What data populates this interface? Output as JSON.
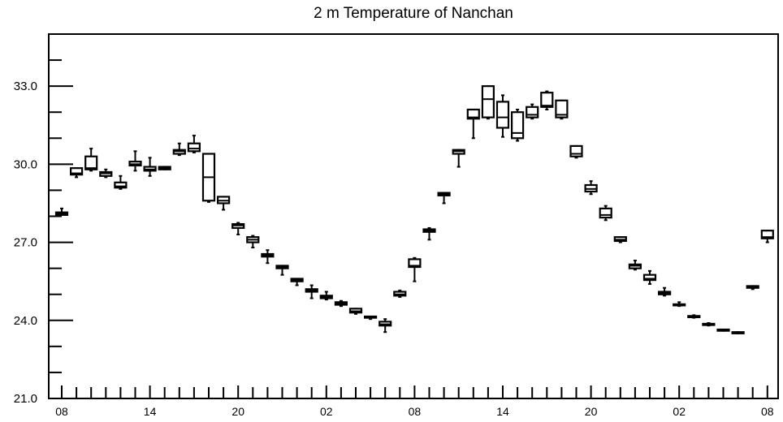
{
  "chart_data": {
    "type": "box",
    "title": "2 m Temperature of Nanchan",
    "xlabel": "",
    "ylabel": "",
    "ylim": [
      21.0,
      35.0
    ],
    "yticks": [
      "21.0",
      "24.0",
      "27.0",
      "30.0",
      "33.0"
    ],
    "x_major_ticks": [
      {
        "index": 0,
        "label": "08"
      },
      {
        "index": 6,
        "label": "14"
      },
      {
        "index": 12,
        "label": "20"
      },
      {
        "index": 18,
        "label": "02"
      },
      {
        "index": 24,
        "label": "08"
      },
      {
        "index": 30,
        "label": "14"
      },
      {
        "index": 36,
        "label": "20"
      },
      {
        "index": 42,
        "label": "02"
      },
      {
        "index": 48,
        "label": "08"
      }
    ],
    "grid": false,
    "boxes": [
      {
        "x": 0,
        "min": 28.05,
        "q1": 28.05,
        "median": 28.1,
        "q3": 28.15,
        "max": 28.3
      },
      {
        "x": 1,
        "min": 29.5,
        "q1": 29.6,
        "median": 29.65,
        "q3": 29.85,
        "max": 29.85
      },
      {
        "x": 2,
        "min": 29.75,
        "q1": 29.8,
        "median": 29.85,
        "q3": 30.3,
        "max": 30.6
      },
      {
        "x": 3,
        "min": 29.5,
        "q1": 29.55,
        "median": 29.65,
        "q3": 29.7,
        "max": 29.8
      },
      {
        "x": 4,
        "min": 29.05,
        "q1": 29.1,
        "median": 29.15,
        "q3": 29.3,
        "max": 29.55
      },
      {
        "x": 5,
        "min": 29.75,
        "q1": 29.95,
        "median": 30.0,
        "q3": 30.1,
        "max": 30.5
      },
      {
        "x": 6,
        "min": 29.55,
        "q1": 29.75,
        "median": 29.8,
        "q3": 29.9,
        "max": 30.25
      },
      {
        "x": 7,
        "min": 29.8,
        "q1": 29.8,
        "median": 29.85,
        "q3": 29.9,
        "max": 29.9
      },
      {
        "x": 8,
        "min": 30.35,
        "q1": 30.4,
        "median": 30.5,
        "q3": 30.55,
        "max": 30.8
      },
      {
        "x": 9,
        "min": 30.45,
        "q1": 30.5,
        "median": 30.6,
        "q3": 30.8,
        "max": 31.1
      },
      {
        "x": 10,
        "min": 28.55,
        "q1": 28.6,
        "median": 29.5,
        "q3": 30.4,
        "max": 30.4
      },
      {
        "x": 11,
        "min": 28.25,
        "q1": 28.5,
        "median": 28.6,
        "q3": 28.75,
        "max": 28.75
      },
      {
        "x": 12,
        "min": 27.3,
        "q1": 27.55,
        "median": 27.65,
        "q3": 27.7,
        "max": 27.75
      },
      {
        "x": 13,
        "min": 26.8,
        "q1": 27.0,
        "median": 27.1,
        "q3": 27.2,
        "max": 27.25
      },
      {
        "x": 14,
        "min": 26.2,
        "q1": 26.45,
        "median": 26.5,
        "q3": 26.55,
        "max": 26.7
      },
      {
        "x": 15,
        "min": 25.75,
        "q1": 26.0,
        "median": 26.05,
        "q3": 26.1,
        "max": 26.1
      },
      {
        "x": 16,
        "min": 25.35,
        "q1": 25.5,
        "median": 25.55,
        "q3": 25.6,
        "max": 25.6
      },
      {
        "x": 17,
        "min": 24.85,
        "q1": 25.1,
        "median": 25.15,
        "q3": 25.2,
        "max": 25.35
      },
      {
        "x": 18,
        "min": 24.8,
        "q1": 24.85,
        "median": 24.9,
        "q3": 24.95,
        "max": 25.1
      },
      {
        "x": 19,
        "min": 24.55,
        "q1": 24.6,
        "median": 24.65,
        "q3": 24.7,
        "max": 24.75
      },
      {
        "x": 20,
        "min": 24.25,
        "q1": 24.3,
        "median": 24.35,
        "q3": 24.45,
        "max": 24.45
      },
      {
        "x": 21,
        "min": 24.05,
        "q1": 24.1,
        "median": 24.12,
        "q3": 24.15,
        "max": 24.15
      },
      {
        "x": 22,
        "min": 23.55,
        "q1": 23.8,
        "median": 23.85,
        "q3": 23.95,
        "max": 24.05
      },
      {
        "x": 23,
        "min": 24.9,
        "q1": 24.95,
        "median": 25.0,
        "q3": 25.1,
        "max": 25.15
      },
      {
        "x": 24,
        "min": 25.5,
        "q1": 26.05,
        "median": 26.1,
        "q3": 26.35,
        "max": 26.4
      },
      {
        "x": 25,
        "min": 27.1,
        "q1": 27.4,
        "median": 27.45,
        "q3": 27.5,
        "max": 27.55
      },
      {
        "x": 26,
        "min": 28.5,
        "q1": 28.8,
        "median": 28.85,
        "q3": 28.9,
        "max": 28.9
      },
      {
        "x": 27,
        "min": 29.9,
        "q1": 30.4,
        "median": 30.5,
        "q3": 30.55,
        "max": 30.55
      },
      {
        "x": 28,
        "min": 31.0,
        "q1": 31.75,
        "median": 31.8,
        "q3": 32.1,
        "max": 32.1
      },
      {
        "x": 29,
        "min": 31.75,
        "q1": 31.8,
        "median": 32.5,
        "q3": 33.0,
        "max": 33.0
      },
      {
        "x": 30,
        "min": 31.05,
        "q1": 31.4,
        "median": 31.8,
        "q3": 32.4,
        "max": 32.65
      },
      {
        "x": 31,
        "min": 30.9,
        "q1": 31.0,
        "median": 31.2,
        "q3": 32.0,
        "max": 32.1
      },
      {
        "x": 32,
        "min": 31.75,
        "q1": 31.8,
        "median": 31.9,
        "q3": 32.2,
        "max": 32.3
      },
      {
        "x": 33,
        "min": 32.1,
        "q1": 32.2,
        "median": 32.25,
        "q3": 32.75,
        "max": 32.8
      },
      {
        "x": 34,
        "min": 31.75,
        "q1": 31.8,
        "median": 31.9,
        "q3": 32.45,
        "max": 32.45
      },
      {
        "x": 35,
        "min": 30.25,
        "q1": 30.3,
        "median": 30.4,
        "q3": 30.7,
        "max": 30.7
      },
      {
        "x": 36,
        "min": 28.85,
        "q1": 28.95,
        "median": 29.05,
        "q3": 29.2,
        "max": 29.35
      },
      {
        "x": 37,
        "min": 27.85,
        "q1": 27.95,
        "median": 28.05,
        "q3": 28.3,
        "max": 28.4
      },
      {
        "x": 38,
        "min": 27.0,
        "q1": 27.05,
        "median": 27.1,
        "q3": 27.2,
        "max": 27.2
      },
      {
        "x": 39,
        "min": 25.95,
        "q1": 26.0,
        "median": 26.1,
        "q3": 26.15,
        "max": 26.3
      },
      {
        "x": 40,
        "min": 25.4,
        "q1": 25.55,
        "median": 25.6,
        "q3": 25.75,
        "max": 25.9
      },
      {
        "x": 41,
        "min": 24.95,
        "q1": 25.0,
        "median": 25.05,
        "q3": 25.1,
        "max": 25.25
      },
      {
        "x": 42,
        "min": 24.55,
        "q1": 24.58,
        "median": 24.6,
        "q3": 24.62,
        "max": 24.7
      },
      {
        "x": 43,
        "min": 24.1,
        "q1": 24.12,
        "median": 24.15,
        "q3": 24.17,
        "max": 24.2
      },
      {
        "x": 44,
        "min": 23.8,
        "q1": 23.82,
        "median": 23.85,
        "q3": 23.87,
        "max": 23.9
      },
      {
        "x": 45,
        "min": 23.6,
        "q1": 23.6,
        "median": 23.62,
        "q3": 23.65,
        "max": 23.65
      },
      {
        "x": 46,
        "min": 23.5,
        "q1": 23.5,
        "median": 23.52,
        "q3": 23.55,
        "max": 23.55
      },
      {
        "x": 47,
        "min": 25.2,
        "q1": 25.25,
        "median": 25.3,
        "q3": 25.32,
        "max": 25.32
      },
      {
        "x": 48,
        "min": 27.0,
        "q1": 27.15,
        "median": 27.2,
        "q3": 27.45,
        "max": 27.45
      }
    ]
  }
}
